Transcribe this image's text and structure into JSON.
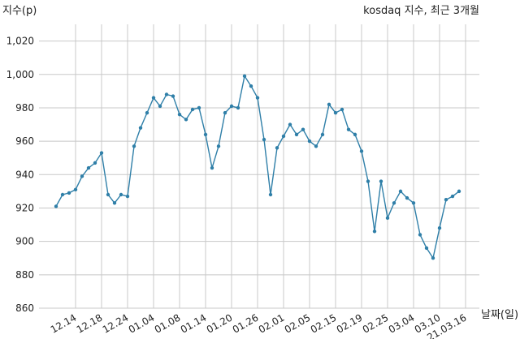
{
  "chart_data": {
    "type": "line",
    "title": "kosdaq 지수, 최근 3개월",
    "xlabel": "날짜(일)",
    "ylabel": "지수(p)",
    "ylim": [
      860,
      1030
    ],
    "yticks": [
      860,
      880,
      900,
      920,
      940,
      960,
      980,
      1000,
      1020
    ],
    "ytick_labels": [
      "860",
      "880",
      "900",
      "920",
      "940",
      "960",
      "980",
      "1,000",
      "1,020"
    ],
    "xtick_labels": [
      "12.14",
      "12.18",
      "12.24",
      "01.04",
      "01.08",
      "01.14",
      "01.20",
      "01.26",
      "02.01",
      "02.05",
      "02.15",
      "02.19",
      "02.25",
      "03.04",
      "03.10",
      "21.03.16"
    ],
    "xtick_index": [
      3,
      7,
      11,
      15,
      19,
      23,
      27,
      31,
      35,
      39,
      43,
      47,
      51,
      55,
      59,
      63
    ],
    "grid": true,
    "color": "#2f7fa8",
    "series": [
      {
        "values": [
          921,
          928,
          929,
          931,
          939,
          944,
          947,
          953,
          928,
          923,
          928,
          927,
          957,
          968,
          977,
          986,
          981,
          988,
          987,
          976,
          973,
          979,
          980,
          964,
          944,
          957,
          977,
          981,
          980,
          999,
          993,
          986,
          961,
          928,
          956,
          963,
          970,
          964,
          967,
          960,
          957,
          964,
          982,
          977,
          979,
          967,
          964,
          954,
          936,
          906,
          936,
          914,
          923,
          930,
          926,
          923,
          904,
          896,
          890,
          908,
          925,
          927,
          930
        ]
      }
    ]
  }
}
